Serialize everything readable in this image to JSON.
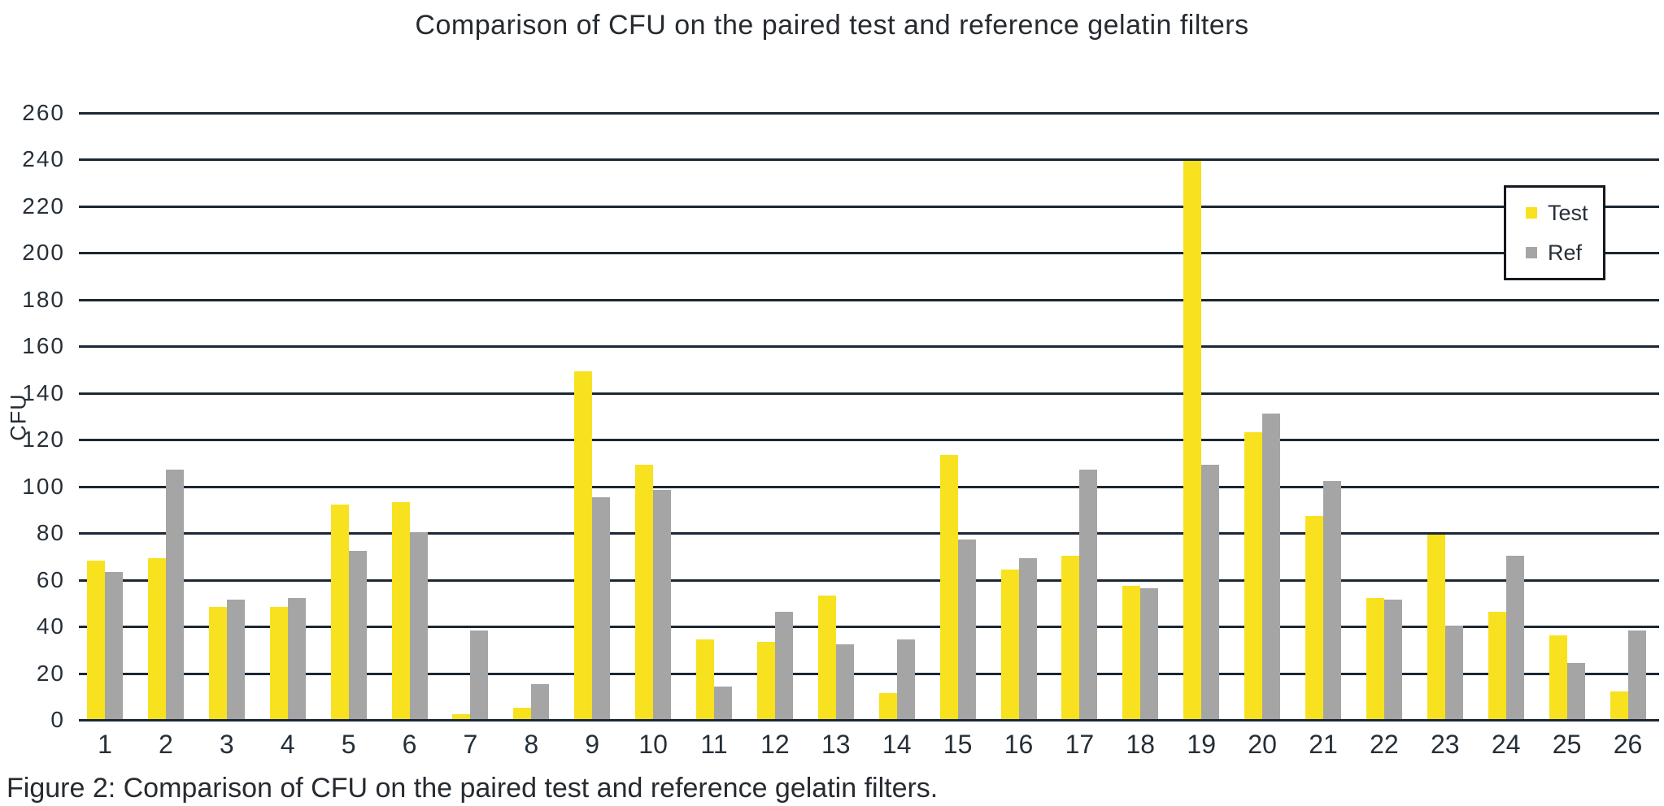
{
  "title": "Comparison of CFU on the paired test and reference gelatin filters",
  "caption": "Figure 2: Comparison of CFU on the paired test and reference gelatin filters.",
  "y_axis": {
    "label": "CFU",
    "min": 0,
    "max": 260,
    "step": 20,
    "tick_labels": [
      "0",
      "20",
      "40",
      "60",
      "80",
      "100",
      "120",
      "140",
      "160",
      "180",
      "200",
      "220",
      "240",
      "260"
    ]
  },
  "x_axis": {
    "tick_labels": [
      "1",
      "2",
      "3",
      "4",
      "5",
      "6",
      "7",
      "8",
      "9",
      "10",
      "11",
      "12",
      "13",
      "14",
      "15",
      "16",
      "17",
      "18",
      "19",
      "20",
      "21",
      "22",
      "23",
      "24",
      "25",
      "26"
    ]
  },
  "legend": {
    "items": [
      {
        "label": "Test"
      },
      {
        "label": "Ref"
      }
    ]
  },
  "colors": {
    "test": "#F8E11E",
    "ref": "#A5A5A5",
    "grid": "#1B2733",
    "axis_text": "#262F38",
    "title_text": "#262B31"
  },
  "chart_data": {
    "type": "bar",
    "title": "Comparison of CFU on the paired test and reference gelatin filters",
    "xlabel": "",
    "ylabel": "CFU",
    "ylim": [
      0,
      260
    ],
    "ytick_step": 20,
    "grid": "horizontal",
    "legend_position": "upper-right",
    "categories": [
      1,
      2,
      3,
      4,
      5,
      6,
      7,
      8,
      9,
      10,
      11,
      12,
      13,
      14,
      15,
      16,
      17,
      18,
      19,
      20,
      21,
      22,
      23,
      24,
      25,
      26
    ],
    "series": [
      {
        "name": "Test",
        "color": "#F8E11E",
        "values": [
          68,
          69,
          48,
          48,
          92,
          93,
          2,
          5,
          149,
          109,
          34,
          33,
          53,
          11,
          113,
          64,
          70,
          57,
          239,
          123,
          87,
          52,
          79,
          46,
          36,
          12
        ]
      },
      {
        "name": "Ref",
        "color": "#A5A5A5",
        "values": [
          63,
          107,
          51,
          52,
          72,
          80,
          38,
          15,
          95,
          98,
          14,
          46,
          32,
          34,
          77,
          69,
          107,
          56,
          109,
          131,
          102,
          51,
          40,
          70,
          24,
          38
        ]
      }
    ]
  }
}
